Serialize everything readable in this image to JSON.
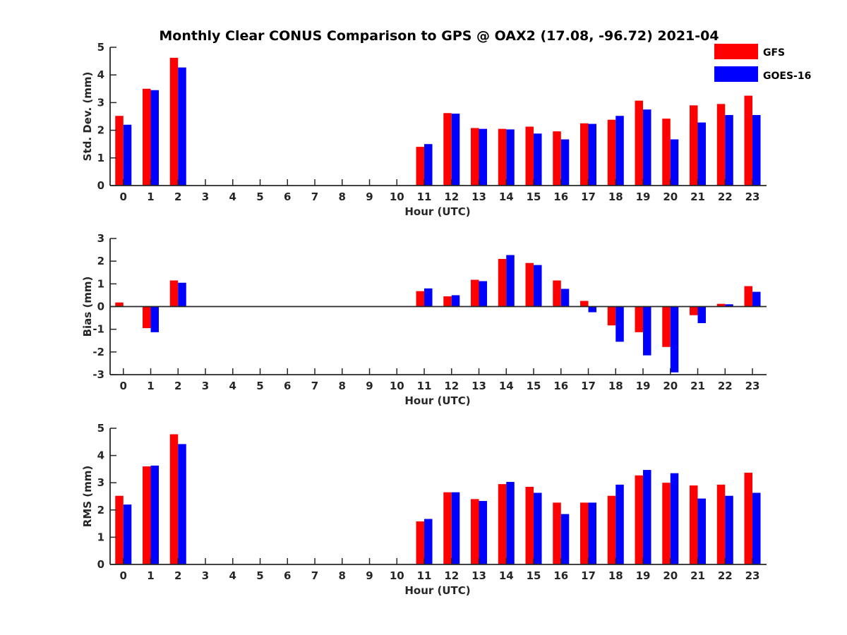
{
  "chart_data": {
    "type": "bar",
    "title": "Monthly Clear CONUS Comparison to GPS @ OAX2 (17.08, -96.72) 2021-04",
    "legend": {
      "placement": "top-right",
      "entries": [
        {
          "name": "GFS",
          "color": "#ff0000"
        },
        {
          "name": "GOES-16",
          "color": "#0000ff"
        }
      ]
    },
    "colors": {
      "GFS": "#ff0000",
      "GOES-16": "#0000ff",
      "axis": "#262626",
      "background": "#ffffff"
    },
    "panels": [
      {
        "name": "std-dev",
        "xlabel": "Hour (UTC)",
        "ylabel": "Std. Dev. (mm)",
        "ylim": [
          0,
          5
        ],
        "yticks": [
          "0",
          "1",
          "2",
          "3",
          "4",
          "5"
        ],
        "categories": [
          "0",
          "1",
          "2",
          "3",
          "4",
          "5",
          "6",
          "7",
          "8",
          "9",
          "10",
          "11",
          "12",
          "13",
          "14",
          "15",
          "16",
          "17",
          "18",
          "19",
          "20",
          "21",
          "22",
          "23"
        ],
        "series": [
          {
            "name": "GFS",
            "values": [
              2.52,
              3.5,
              4.62,
              0,
              0,
              0,
              0,
              0,
              0,
              0,
              0,
              1.4,
              2.62,
              2.08,
              2.05,
              2.13,
              1.96,
              2.25,
              2.38,
              3.07,
              2.42,
              2.9,
              2.95,
              3.25
            ]
          },
          {
            "name": "GOES-16",
            "values": [
              2.2,
              3.45,
              4.27,
              0,
              0,
              0,
              0,
              0,
              0,
              0,
              0,
              1.5,
              2.6,
              2.05,
              2.03,
              1.88,
              1.67,
              2.23,
              2.52,
              2.75,
              1.67,
              2.28,
              2.55,
              2.55
            ]
          }
        ]
      },
      {
        "name": "bias",
        "xlabel": "Hour (UTC)",
        "ylabel": "Bias (mm)",
        "ylim": [
          -3,
          3
        ],
        "yticks": [
          "-3",
          "-2",
          "-1",
          "0",
          "1",
          "2",
          "3"
        ],
        "categories": [
          "0",
          "1",
          "2",
          "3",
          "4",
          "5",
          "6",
          "7",
          "8",
          "9",
          "10",
          "11",
          "12",
          "13",
          "14",
          "15",
          "16",
          "17",
          "18",
          "19",
          "20",
          "21",
          "22",
          "23"
        ],
        "series": [
          {
            "name": "GFS",
            "values": [
              0.18,
              -0.95,
              1.15,
              0,
              0,
              0,
              0,
              0,
              0,
              0,
              0,
              0.68,
              0.45,
              1.18,
              2.1,
              1.92,
              1.15,
              0.25,
              -0.83,
              -1.13,
              -1.78,
              -0.38,
              0.12,
              0.9
            ]
          },
          {
            "name": "GOES-16",
            "values": [
              0,
              -1.13,
              1.05,
              0,
              0,
              0,
              0,
              0,
              0,
              0,
              0,
              0.8,
              0.5,
              1.12,
              2.27,
              1.83,
              0.78,
              -0.25,
              -1.55,
              -2.15,
              -2.9,
              -0.73,
              0.1,
              0.65
            ]
          }
        ]
      },
      {
        "name": "rms",
        "xlabel": "Hour (UTC)",
        "ylabel": "RMS (mm)",
        "ylim": [
          0,
          5
        ],
        "yticks": [
          "0",
          "1",
          "2",
          "3",
          "4",
          "5"
        ],
        "categories": [
          "0",
          "1",
          "2",
          "3",
          "4",
          "5",
          "6",
          "7",
          "8",
          "9",
          "10",
          "11",
          "12",
          "13",
          "14",
          "15",
          "16",
          "17",
          "18",
          "19",
          "20",
          "21",
          "22",
          "23"
        ],
        "series": [
          {
            "name": "GFS",
            "values": [
              2.52,
              3.6,
              4.78,
              0,
              0,
              0,
              0,
              0,
              0,
              0,
              0,
              1.58,
              2.65,
              2.4,
              2.95,
              2.85,
              2.27,
              2.27,
              2.52,
              3.27,
              3.0,
              2.9,
              2.93,
              3.37
            ]
          },
          {
            "name": "GOES-16",
            "values": [
              2.2,
              3.63,
              4.42,
              0,
              0,
              0,
              0,
              0,
              0,
              0,
              0,
              1.67,
              2.65,
              2.33,
              3.03,
              2.63,
              1.85,
              2.27,
              2.93,
              3.47,
              3.35,
              2.42,
              2.52,
              2.63
            ]
          }
        ]
      }
    ]
  }
}
